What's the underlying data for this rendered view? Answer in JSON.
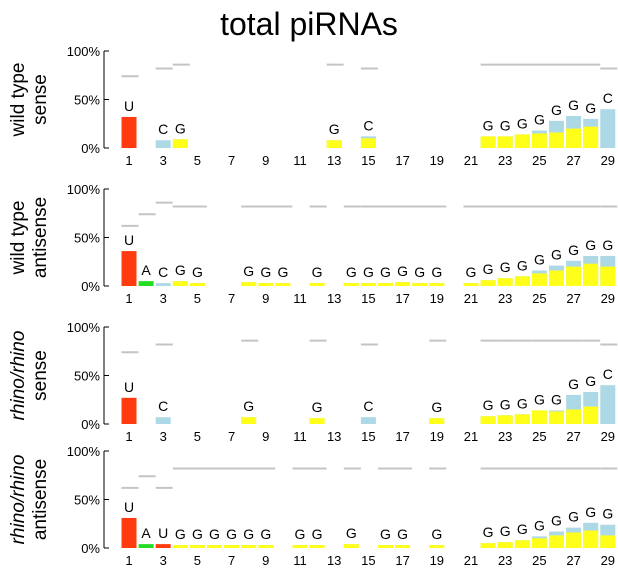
{
  "chart_data": {
    "type": "bar",
    "title": "total piRNAs",
    "x_ticks": [
      1,
      3,
      5,
      7,
      9,
      11,
      13,
      15,
      17,
      19,
      21,
      23,
      25,
      27,
      29
    ],
    "y_ticks": [
      "0%",
      "50%",
      "100%"
    ],
    "ylim": [
      0,
      100
    ],
    "grid": false,
    "colors": {
      "U": "#ff3b0f",
      "A": "#22dd22",
      "C": "#add8e6",
      "G": "#ffff1a",
      "consensus": "#c4c4c4",
      "U_secondary": "#cc2222"
    },
    "panels": [
      {
        "ylabel": [
          "wild type",
          "sense"
        ],
        "label_italic": false,
        "positions": [
          {
            "pos": 1,
            "letter": "U",
            "value": 32,
            "secondary": null,
            "consensus": 74
          },
          {
            "pos": 2,
            "letter": "",
            "value": 0,
            "secondary": null,
            "consensus": null
          },
          {
            "pos": 3,
            "letter": "C",
            "value": 8,
            "secondary": 0,
            "consensus": 82
          },
          {
            "pos": 4,
            "letter": "G",
            "value": 9,
            "secondary": 9,
            "consensus": 86
          },
          {
            "pos": 5,
            "letter": "",
            "value": 0,
            "secondary": null,
            "consensus": null
          },
          {
            "pos": 6,
            "letter": "",
            "value": 0,
            "secondary": null,
            "consensus": null
          },
          {
            "pos": 7,
            "letter": "",
            "value": 0,
            "secondary": null,
            "consensus": null
          },
          {
            "pos": 8,
            "letter": "",
            "value": 0,
            "secondary": null,
            "consensus": null
          },
          {
            "pos": 9,
            "letter": "",
            "value": 0,
            "secondary": null,
            "consensus": null
          },
          {
            "pos": 10,
            "letter": "",
            "value": 0,
            "secondary": null,
            "consensus": null
          },
          {
            "pos": 11,
            "letter": "",
            "value": 0,
            "secondary": null,
            "consensus": null
          },
          {
            "pos": 12,
            "letter": "",
            "value": 0,
            "secondary": null,
            "consensus": null
          },
          {
            "pos": 13,
            "letter": "G",
            "value": 8,
            "secondary": 8,
            "consensus": 86
          },
          {
            "pos": 14,
            "letter": "",
            "value": 0,
            "secondary": null,
            "consensus": null
          },
          {
            "pos": 15,
            "letter": "C",
            "value": 12,
            "secondary": 10,
            "consensus": 82
          },
          {
            "pos": 16,
            "letter": "",
            "value": 0,
            "secondary": null,
            "consensus": null
          },
          {
            "pos": 17,
            "letter": "",
            "value": 0,
            "secondary": null,
            "consensus": null
          },
          {
            "pos": 18,
            "letter": "",
            "value": 0,
            "secondary": null,
            "consensus": null
          },
          {
            "pos": 19,
            "letter": "",
            "value": 0,
            "secondary": null,
            "consensus": null
          },
          {
            "pos": 20,
            "letter": "",
            "value": 0,
            "secondary": null,
            "consensus": null
          },
          {
            "pos": 21,
            "letter": "",
            "value": 0,
            "secondary": null,
            "consensus": null
          },
          {
            "pos": 22,
            "letter": "G",
            "value": 12,
            "secondary": 12,
            "consensus": 86
          },
          {
            "pos": 23,
            "letter": "G",
            "value": 12,
            "secondary": 12,
            "consensus": 86
          },
          {
            "pos": 24,
            "letter": "G",
            "value": 14,
            "secondary": 14,
            "consensus": 86
          },
          {
            "pos": 25,
            "letter": "G",
            "value": 18,
            "secondary": 15,
            "consensus": 86
          },
          {
            "pos": 26,
            "letter": "G",
            "value": 28,
            "secondary": 16,
            "consensus": 86
          },
          {
            "pos": 27,
            "letter": "G",
            "value": 33,
            "secondary": 20,
            "consensus": 86
          },
          {
            "pos": 28,
            "letter": "G",
            "value": 30,
            "secondary": 22,
            "consensus": 86
          },
          {
            "pos": 29,
            "letter": "C",
            "value": 40,
            "secondary": 0,
            "consensus": 82
          }
        ]
      },
      {
        "ylabel": [
          "wild type",
          "antisense"
        ],
        "label_italic": false,
        "positions": [
          {
            "pos": 1,
            "letter": "U",
            "value": 36,
            "secondary": null,
            "consensus": 62
          },
          {
            "pos": 2,
            "letter": "A",
            "value": 5,
            "secondary": null,
            "consensus": 74
          },
          {
            "pos": 3,
            "letter": "C",
            "value": 3,
            "secondary": 0,
            "consensus": 86
          },
          {
            "pos": 4,
            "letter": "G",
            "value": 5,
            "secondary": 5,
            "consensus": 82
          },
          {
            "pos": 5,
            "letter": "G",
            "value": 3,
            "secondary": 3,
            "consensus": 82
          },
          {
            "pos": 6,
            "letter": "",
            "value": 0,
            "secondary": null,
            "consensus": null
          },
          {
            "pos": 7,
            "letter": "",
            "value": 0,
            "secondary": null,
            "consensus": null
          },
          {
            "pos": 8,
            "letter": "G",
            "value": 4,
            "secondary": 4,
            "consensus": 82
          },
          {
            "pos": 9,
            "letter": "G",
            "value": 3,
            "secondary": 3,
            "consensus": 82
          },
          {
            "pos": 10,
            "letter": "G",
            "value": 3,
            "secondary": 3,
            "consensus": 82
          },
          {
            "pos": 11,
            "letter": "",
            "value": 0,
            "secondary": null,
            "consensus": null
          },
          {
            "pos": 12,
            "letter": "G",
            "value": 3,
            "secondary": 3,
            "consensus": 82
          },
          {
            "pos": 13,
            "letter": "",
            "value": 0,
            "secondary": null,
            "consensus": null
          },
          {
            "pos": 14,
            "letter": "G",
            "value": 3,
            "secondary": 3,
            "consensus": 82
          },
          {
            "pos": 15,
            "letter": "G",
            "value": 3,
            "secondary": 3,
            "consensus": 82
          },
          {
            "pos": 16,
            "letter": "G",
            "value": 3,
            "secondary": 3,
            "consensus": 82
          },
          {
            "pos": 17,
            "letter": "G",
            "value": 4,
            "secondary": 4,
            "consensus": 82
          },
          {
            "pos": 18,
            "letter": "G",
            "value": 3,
            "secondary": 3,
            "consensus": 82
          },
          {
            "pos": 19,
            "letter": "G",
            "value": 3,
            "secondary": 3,
            "consensus": 82
          },
          {
            "pos": 20,
            "letter": "",
            "value": 0,
            "secondary": null,
            "consensus": null
          },
          {
            "pos": 21,
            "letter": "G",
            "value": 3,
            "secondary": 3,
            "consensus": 82
          },
          {
            "pos": 22,
            "letter": "G",
            "value": 6,
            "secondary": 6,
            "consensus": 82
          },
          {
            "pos": 23,
            "letter": "G",
            "value": 8,
            "secondary": 8,
            "consensus": 82
          },
          {
            "pos": 24,
            "letter": "G",
            "value": 10,
            "secondary": 10,
            "consensus": 82
          },
          {
            "pos": 25,
            "letter": "G",
            "value": 16,
            "secondary": 13,
            "consensus": 82
          },
          {
            "pos": 26,
            "letter": "G",
            "value": 21,
            "secondary": 16,
            "consensus": 82
          },
          {
            "pos": 27,
            "letter": "G",
            "value": 26,
            "secondary": 20,
            "consensus": 82
          },
          {
            "pos": 28,
            "letter": "G",
            "value": 31,
            "secondary": 23,
            "consensus": 82
          },
          {
            "pos": 29,
            "letter": "G",
            "value": 31,
            "secondary": 20,
            "consensus": 82
          }
        ]
      },
      {
        "ylabel": [
          "rhino/rhino",
          "sense"
        ],
        "label_italic": true,
        "positions": [
          {
            "pos": 1,
            "letter": "U",
            "value": 27,
            "secondary": null,
            "consensus": 74
          },
          {
            "pos": 2,
            "letter": "",
            "value": 0,
            "secondary": null,
            "consensus": null
          },
          {
            "pos": 3,
            "letter": "C",
            "value": 7,
            "secondary": 0,
            "consensus": 82
          },
          {
            "pos": 4,
            "letter": "",
            "value": 0,
            "secondary": null,
            "consensus": null
          },
          {
            "pos": 5,
            "letter": "",
            "value": 0,
            "secondary": null,
            "consensus": null
          },
          {
            "pos": 6,
            "letter": "",
            "value": 0,
            "secondary": null,
            "consensus": null
          },
          {
            "pos": 7,
            "letter": "",
            "value": 0,
            "secondary": null,
            "consensus": null
          },
          {
            "pos": 8,
            "letter": "G",
            "value": 7,
            "secondary": 7,
            "consensus": 86
          },
          {
            "pos": 9,
            "letter": "",
            "value": 0,
            "secondary": null,
            "consensus": null
          },
          {
            "pos": 10,
            "letter": "",
            "value": 0,
            "secondary": null,
            "consensus": null
          },
          {
            "pos": 11,
            "letter": "",
            "value": 0,
            "secondary": null,
            "consensus": null
          },
          {
            "pos": 12,
            "letter": "G",
            "value": 6,
            "secondary": 6,
            "consensus": 86
          },
          {
            "pos": 13,
            "letter": "",
            "value": 0,
            "secondary": null,
            "consensus": null
          },
          {
            "pos": 14,
            "letter": "",
            "value": 0,
            "secondary": null,
            "consensus": null
          },
          {
            "pos": 15,
            "letter": "C",
            "value": 7,
            "secondary": 0,
            "consensus": 82
          },
          {
            "pos": 16,
            "letter": "",
            "value": 0,
            "secondary": null,
            "consensus": null
          },
          {
            "pos": 17,
            "letter": "",
            "value": 0,
            "secondary": null,
            "consensus": null
          },
          {
            "pos": 18,
            "letter": "",
            "value": 0,
            "secondary": null,
            "consensus": null
          },
          {
            "pos": 19,
            "letter": "G",
            "value": 6,
            "secondary": 6,
            "consensus": 86
          },
          {
            "pos": 20,
            "letter": "",
            "value": 0,
            "secondary": null,
            "consensus": null
          },
          {
            "pos": 21,
            "letter": "",
            "value": 0,
            "secondary": null,
            "consensus": null
          },
          {
            "pos": 22,
            "letter": "G",
            "value": 8,
            "secondary": 8,
            "consensus": 86
          },
          {
            "pos": 23,
            "letter": "G",
            "value": 9,
            "secondary": 9,
            "consensus": 86
          },
          {
            "pos": 24,
            "letter": "G",
            "value": 10,
            "secondary": 10,
            "consensus": 86
          },
          {
            "pos": 25,
            "letter": "G",
            "value": 14,
            "secondary": 14,
            "consensus": 86
          },
          {
            "pos": 26,
            "letter": "G",
            "value": 14,
            "secondary": 13,
            "consensus": 86
          },
          {
            "pos": 27,
            "letter": "G",
            "value": 30,
            "secondary": 15,
            "consensus": 86
          },
          {
            "pos": 28,
            "letter": "G",
            "value": 33,
            "secondary": 18,
            "consensus": 86
          },
          {
            "pos": 29,
            "letter": "C",
            "value": 40,
            "secondary": 0,
            "consensus": 82
          }
        ]
      },
      {
        "ylabel": [
          "rhino/rhino",
          "antisense"
        ],
        "label_italic": true,
        "positions": [
          {
            "pos": 1,
            "letter": "U",
            "value": 31,
            "secondary": null,
            "consensus": 62
          },
          {
            "pos": 2,
            "letter": "A",
            "value": 4,
            "secondary": null,
            "consensus": 74
          },
          {
            "pos": 3,
            "letter": "U",
            "value": 4,
            "secondary": null,
            "consensus": 62
          },
          {
            "pos": 4,
            "letter": "G",
            "value": 3,
            "secondary": 3,
            "consensus": 82
          },
          {
            "pos": 5,
            "letter": "G",
            "value": 3,
            "secondary": 3,
            "consensus": 82
          },
          {
            "pos": 6,
            "letter": "G",
            "value": 3,
            "secondary": 3,
            "consensus": 82
          },
          {
            "pos": 7,
            "letter": "G",
            "value": 3,
            "secondary": 3,
            "consensus": 82
          },
          {
            "pos": 8,
            "letter": "G",
            "value": 3,
            "secondary": 3,
            "consensus": 82
          },
          {
            "pos": 9,
            "letter": "G",
            "value": 3,
            "secondary": 3,
            "consensus": 82
          },
          {
            "pos": 10,
            "letter": "",
            "value": 0,
            "secondary": null,
            "consensus": null
          },
          {
            "pos": 11,
            "letter": "G",
            "value": 3,
            "secondary": 3,
            "consensus": 82
          },
          {
            "pos": 12,
            "letter": "G",
            "value": 3,
            "secondary": 3,
            "consensus": 82
          },
          {
            "pos": 13,
            "letter": "",
            "value": 0,
            "secondary": null,
            "consensus": null
          },
          {
            "pos": 14,
            "letter": "G",
            "value": 4,
            "secondary": 4,
            "consensus": 82
          },
          {
            "pos": 15,
            "letter": "",
            "value": 0,
            "secondary": null,
            "consensus": null
          },
          {
            "pos": 16,
            "letter": "G",
            "value": 3,
            "secondary": 3,
            "consensus": 82
          },
          {
            "pos": 17,
            "letter": "G",
            "value": 3,
            "secondary": 3,
            "consensus": 82
          },
          {
            "pos": 18,
            "letter": "",
            "value": 0,
            "secondary": null,
            "consensus": null
          },
          {
            "pos": 19,
            "letter": "G",
            "value": 3,
            "secondary": 3,
            "consensus": 82
          },
          {
            "pos": 20,
            "letter": "",
            "value": 0,
            "secondary": null,
            "consensus": null
          },
          {
            "pos": 21,
            "letter": "",
            "value": 0,
            "secondary": null,
            "consensus": null
          },
          {
            "pos": 22,
            "letter": "G",
            "value": 5,
            "secondary": 5,
            "consensus": 82
          },
          {
            "pos": 23,
            "letter": "G",
            "value": 6,
            "secondary": 6,
            "consensus": 82
          },
          {
            "pos": 24,
            "letter": "G",
            "value": 8,
            "secondary": 8,
            "consensus": 82
          },
          {
            "pos": 25,
            "letter": "G",
            "value": 12,
            "secondary": 10,
            "consensus": 82
          },
          {
            "pos": 26,
            "letter": "G",
            "value": 17,
            "secondary": 13,
            "consensus": 82
          },
          {
            "pos": 27,
            "letter": "G",
            "value": 21,
            "secondary": 16,
            "consensus": 82
          },
          {
            "pos": 28,
            "letter": "G",
            "value": 26,
            "secondary": 18,
            "consensus": 82
          },
          {
            "pos": 29,
            "letter": "G",
            "value": 24,
            "secondary": 13,
            "consensus": 82
          }
        ]
      }
    ]
  }
}
